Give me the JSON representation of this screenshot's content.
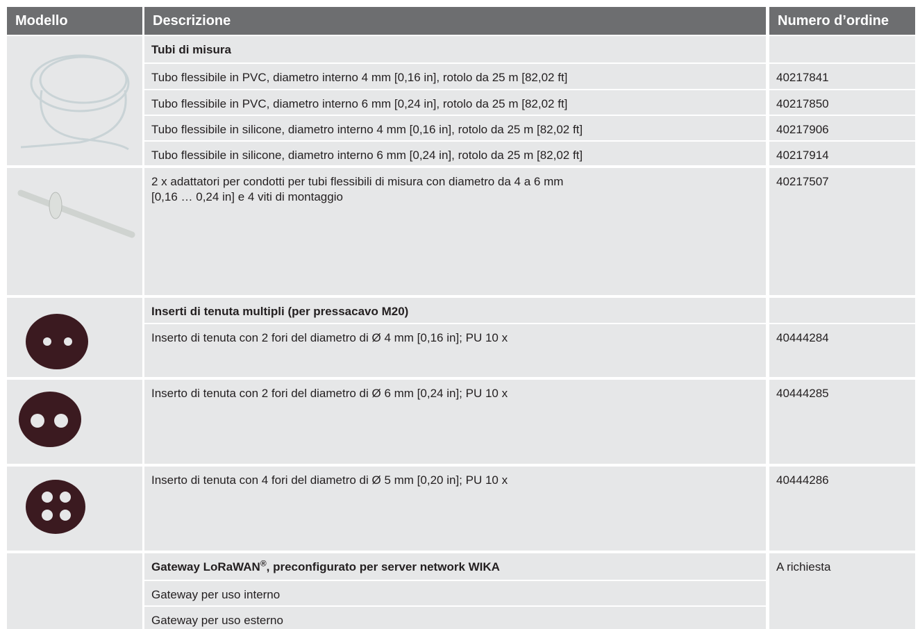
{
  "header": [
    "Modello",
    "Descrizione",
    "Numero d’ordine"
  ],
  "sections": [
    {
      "title": "Tubi di misura",
      "items": [
        {
          "description": "Tubo flessibile in PVC, diametro interno 4 mm [0,16 in], rotolo da 25 m [82,02 ft]",
          "order": "40217841"
        },
        {
          "description": "Tubo flessibile in PVC, diametro interno 6 mm [0,24 in], rotolo da 25 m [82,02 ft]",
          "order": "40217850"
        },
        {
          "description": "Tubo flessibile in silicone, diametro interno 4 mm [0,16 in], rotolo da 25 m [82,02 ft]",
          "order": "40217906"
        },
        {
          "description": "Tubo flessibile in silicone, diametro interno 6 mm [0,24 in], rotolo da 25 m [82,02 ft]",
          "order": "40217914"
        }
      ]
    },
    {
      "items": [
        {
          "description": [
            "2 x adattatori per condotti per tubi flessibili di misura con diametro da 4 a 6 mm",
            "[0,16 … 0,24 in] e 4 viti di montaggio"
          ],
          "order": "40217507"
        }
      ]
    },
    {
      "title": "Inserti di tenuta multipli (per pressacavo M20)",
      "items": [
        {
          "description": "Inserto di tenuta con 2 fori del diametro di Ø 4 mm [0,16 in]; PU 10 x",
          "order": "40444284"
        }
      ]
    },
    {
      "items": [
        {
          "description": "Inserto di tenuta con 2 fori del diametro di Ø 6 mm [0,24 in]; PU 10 x",
          "order": "40444285"
        }
      ]
    },
    {
      "items": [
        {
          "description": "Inserto di tenuta con 4 fori del diametro di Ø 5 mm [0,20 in]; PU 10 x",
          "order": "40444286"
        }
      ]
    },
    {
      "title": [
        "Gateway LoRaWAN",
        "®",
        ", preconfigurato per server network WIKA"
      ],
      "order": "A richiesta",
      "items": [
        {
          "description": "Gateway per uso interno"
        },
        {
          "description": "Gateway per uso esterno"
        }
      ]
    }
  ]
}
